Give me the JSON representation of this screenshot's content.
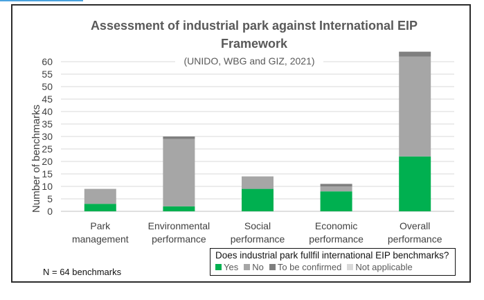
{
  "chart_data": {
    "type": "bar",
    "stacked": true,
    "title": "Assessment of industrial park against International EIP Framework",
    "title_lines": [
      "Assessment of industrial park against International EIP",
      "Framework"
    ],
    "subtitle": "(UNIDO, WBG and GIZ, 2021)",
    "ylabel": "Number of benchmarks",
    "xlabel": "",
    "ylim": [
      0,
      65
    ],
    "yticks": [
      0,
      5,
      10,
      15,
      20,
      25,
      30,
      35,
      40,
      45,
      50,
      55,
      60
    ],
    "grid": true,
    "categories": [
      [
        "Park",
        "management"
      ],
      [
        "Environmental",
        "performance"
      ],
      [
        "Social",
        "performance"
      ],
      [
        "Economic",
        "performance"
      ],
      [
        "Overall",
        "performance"
      ]
    ],
    "series": [
      {
        "name": "Yes",
        "color": "#00b050",
        "values": [
          3,
          2,
          9,
          8,
          22
        ]
      },
      {
        "name": "No",
        "color": "#a6a6a6",
        "values": [
          6,
          27,
          5,
          2,
          40
        ]
      },
      {
        "name": "To be confirmed",
        "color": "#7f7f7f",
        "values": [
          0,
          1,
          0,
          1,
          2
        ]
      },
      {
        "name": "Not applicable",
        "color": "#d9d9d9",
        "values": [
          0,
          0,
          0,
          0,
          0
        ]
      }
    ],
    "legend_title": "Does industrial park fullfil international EIP benchmarks?",
    "legend_position": "bottom-right"
  },
  "note": "N = 64 benchmarks"
}
